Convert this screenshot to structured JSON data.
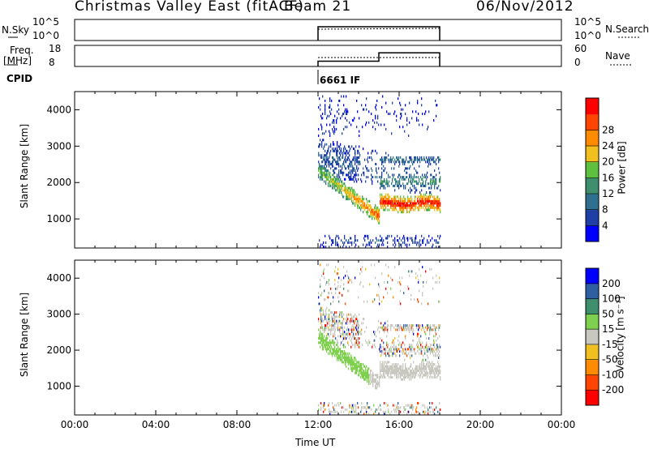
{
  "header": {
    "station": "Christmas Valley East (fitACF)",
    "beam": "Beam 21",
    "date": "06/Nov/2012"
  },
  "panels": {
    "nsky_label": "N.Sky",
    "nsky_ticks": [
      "10^5",
      "10^0"
    ],
    "nsky_right_ticks": [
      "10^5",
      "10^0"
    ],
    "nsearch_label": "N.Search",
    "freq_label_1": "Freq.",
    "freq_label_2": "[MHz]",
    "freq_ticks": [
      "18",
      "8"
    ],
    "nave_ticks": [
      "60",
      "0"
    ],
    "nave_label": "Nave",
    "cpid_label": "CPID",
    "cpid_value": "6661 IF"
  },
  "colors": {
    "power_scale": [
      "#0000ff",
      "#1f3fa6",
      "#2f6f8f",
      "#3f8f6f",
      "#5fbf3f",
      "#f0c020",
      "#ff8c00",
      "#ff4500",
      "#ff0000"
    ],
    "velocity_scale": [
      "#ff0000",
      "#ff4500",
      "#ff8c00",
      "#f0c020",
      "#c8c8c0",
      "#7fd04f",
      "#3f8f6f",
      "#2f5fa0",
      "#0000ff"
    ]
  },
  "chart_data": [
    {
      "type": "heatmap",
      "name": "power",
      "ylabel": "Slant Range [km]",
      "yticks": [
        "1000",
        "2000",
        "3000",
        "4000"
      ],
      "ylim": [
        200,
        4500
      ],
      "xlim": [
        0,
        24
      ],
      "colorbar_label": "Power [dB]",
      "colorbar_ticks": [
        "4",
        "8",
        "12",
        "16",
        "20",
        "24",
        "28"
      ],
      "colorbar_range": [
        0,
        32
      ]
    },
    {
      "type": "heatmap",
      "name": "velocity",
      "ylabel": "Slant Range [km]",
      "yticks": [
        "1000",
        "2000",
        "3000",
        "4000"
      ],
      "ylim": [
        200,
        4500
      ],
      "xlim": [
        0,
        24
      ],
      "colorbar_label": "Velocity [m s⁻¹]",
      "colorbar_ticks": [
        "-200",
        "-100",
        "-50",
        "-15",
        "15",
        "50",
        "100",
        "200"
      ]
    },
    {
      "type": "line",
      "name": "frequency",
      "x": [
        12,
        15,
        15,
        18
      ],
      "y": [
        10.5,
        10.5,
        14.5,
        14.5
      ],
      "ylim": [
        8,
        18
      ]
    }
  ],
  "xaxis": {
    "ticks": [
      "00:00",
      "04:00",
      "08:00",
      "12:00",
      "16:00",
      "20:00",
      "00:00"
    ],
    "label": "Time UT"
  }
}
